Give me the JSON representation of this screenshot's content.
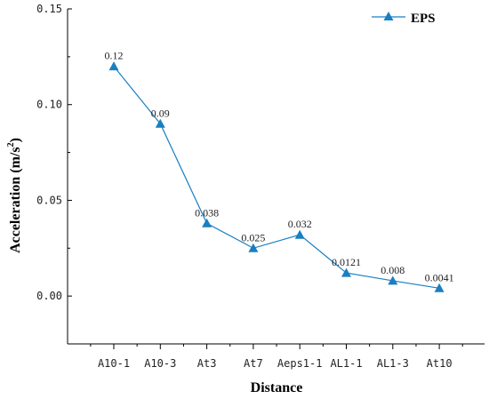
{
  "chart_data": {
    "type": "line",
    "title": "",
    "xlabel": "Distance",
    "ylabel_main": "Acceleration (m/s",
    "ylabel_sup": "2",
    "ylabel_end": ")",
    "categories": [
      "A10-1",
      "A10-3",
      "At3",
      "At7",
      "Aeps1-1",
      "AL1-1",
      "AL1-3",
      "At10"
    ],
    "ylim": [
      -0.025,
      0.15
    ],
    "yticks": [
      0.0,
      0.05,
      0.1,
      0.15
    ],
    "ytick_labels": [
      "0.00",
      "0.05",
      "0.10",
      "0.15"
    ],
    "series": [
      {
        "name": "EPS",
        "color": "#1a7fc1",
        "values": [
          0.12,
          0.09,
          0.038,
          0.025,
          0.032,
          0.0121,
          0.008,
          0.0041
        ],
        "labels": [
          "0.12",
          "0.09",
          "0.038",
          "0.025",
          "0.032",
          "0.0121",
          "0.008",
          "0.0041"
        ]
      }
    ],
    "legend_position": "top-right",
    "grid": false
  }
}
